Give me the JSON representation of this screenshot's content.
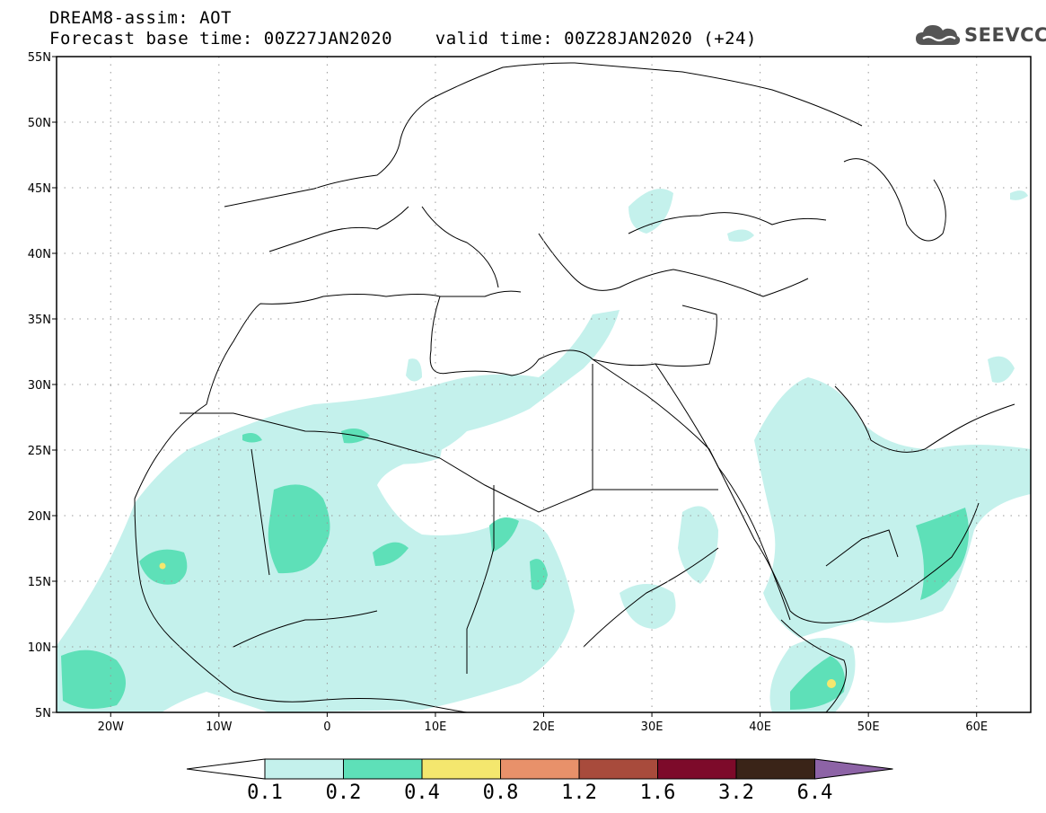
{
  "header": {
    "line1": "DREAM8-assim: AOT",
    "line2": "Forecast base time: 00Z27JAN2020    valid time: 00Z28JAN2020 (+24)",
    "logo_text": "SEEVCCC",
    "logo_icon": "cloud-icon"
  },
  "map": {
    "extent": {
      "lon": [
        -25,
        65
      ],
      "lat": [
        5,
        55
      ]
    },
    "lat_ticks": [
      {
        "value": 55,
        "label": "55N"
      },
      {
        "value": 50,
        "label": "50N"
      },
      {
        "value": 45,
        "label": "45N"
      },
      {
        "value": 40,
        "label": "40N"
      },
      {
        "value": 35,
        "label": "35N"
      },
      {
        "value": 30,
        "label": "30N"
      },
      {
        "value": 25,
        "label": "25N"
      },
      {
        "value": 20,
        "label": "20N"
      },
      {
        "value": 15,
        "label": "15N"
      },
      {
        "value": 10,
        "label": "10N"
      },
      {
        "value": 5,
        "label": "5N"
      }
    ],
    "lon_ticks": [
      {
        "value": -20,
        "label": "20W"
      },
      {
        "value": -10,
        "label": "10W"
      },
      {
        "value": 0,
        "label": "0"
      },
      {
        "value": 10,
        "label": "10E"
      },
      {
        "value": 20,
        "label": "20E"
      },
      {
        "value": 30,
        "label": "30E"
      },
      {
        "value": 40,
        "label": "40E"
      },
      {
        "value": 50,
        "label": "50E"
      },
      {
        "value": 60,
        "label": "60E"
      }
    ],
    "grid": "dotted",
    "colors": {
      "c01": "#c4f1ec",
      "c02": "#5ee0b8",
      "c04": "#f4e76e",
      "coast": "#000000"
    }
  },
  "colorbar": {
    "levels": [
      "0.1",
      "0.2",
      "0.4",
      "0.8",
      "1.2",
      "1.6",
      "3.2",
      "6.4"
    ],
    "colors": [
      "#c4f1ec",
      "#5ee0b8",
      "#f4e76e",
      "#e8916a",
      "#a84b3c",
      "#7d0a2a",
      "#3a2418",
      "#8d63a6"
    ]
  }
}
